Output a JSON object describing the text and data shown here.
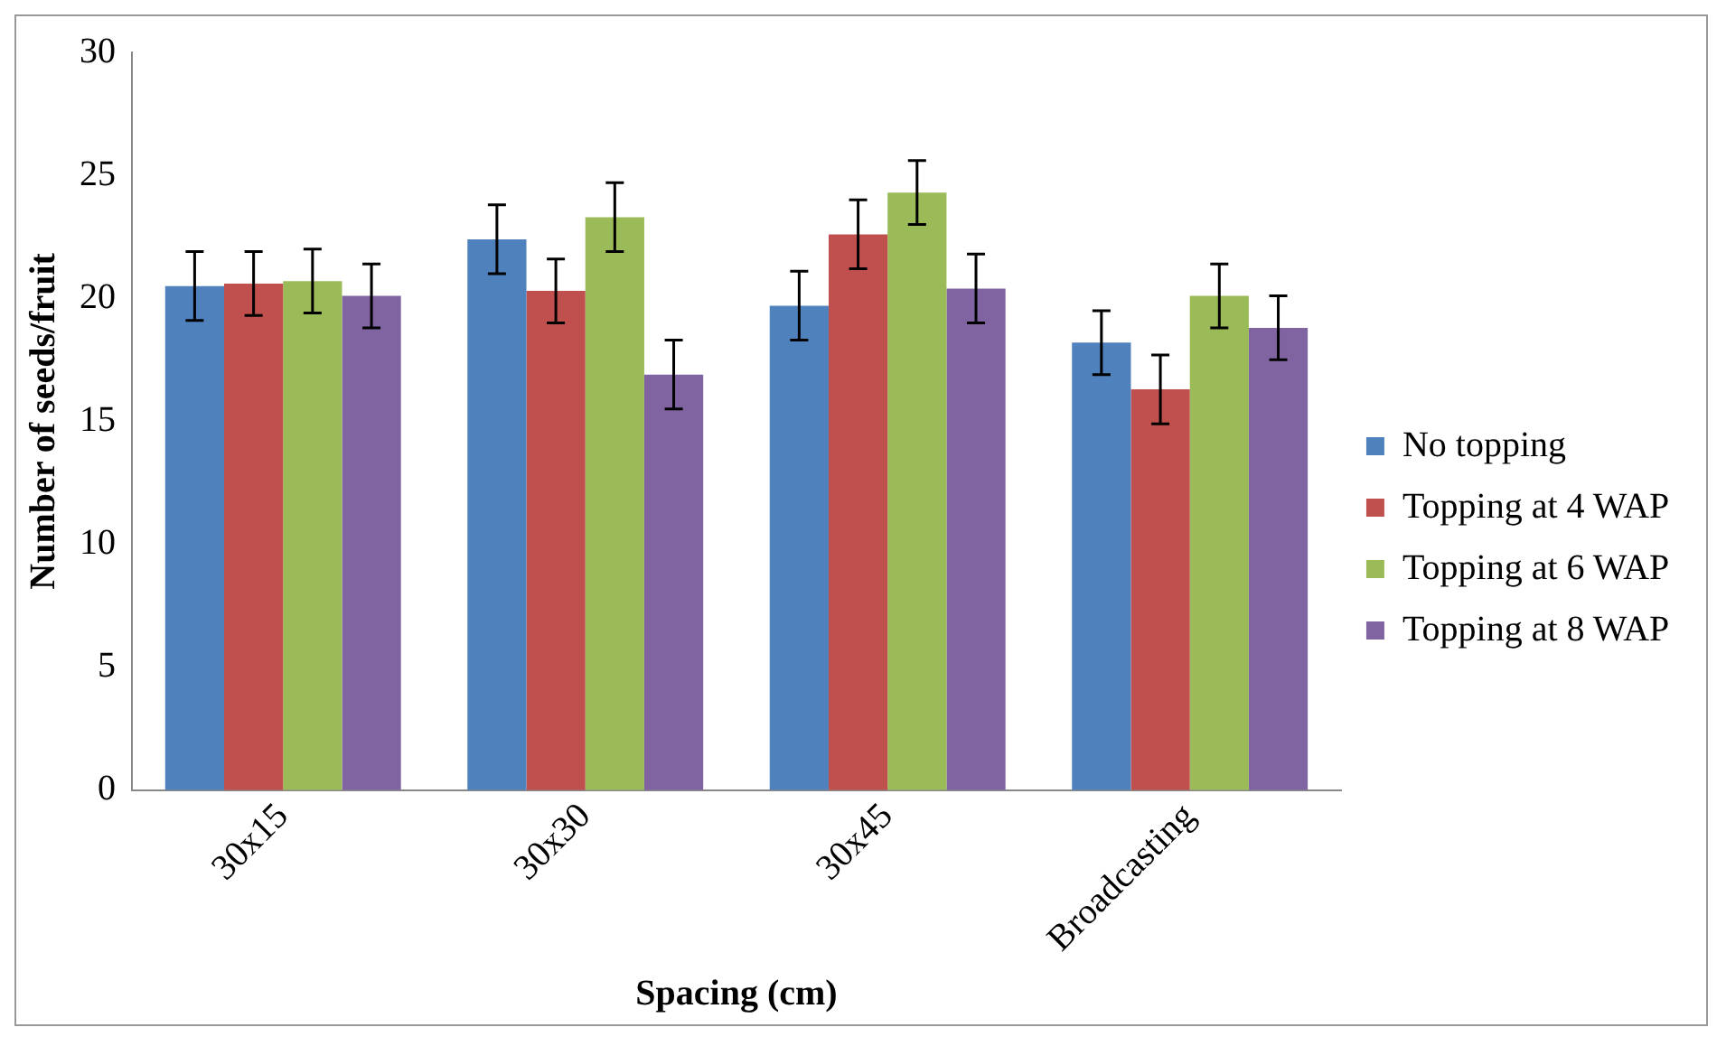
{
  "chart_data": {
    "type": "bar",
    "xlabel": "Spacing (cm)",
    "ylabel": "Number of seeds/fruit",
    "categories": [
      "30x15",
      "30x30",
      "30x45",
      "Broadcasting"
    ],
    "series": [
      {
        "name": "No topping",
        "color": "#4f81bd",
        "values": [
          20.5,
          22.4,
          19.7,
          18.2
        ],
        "errors": [
          1.4,
          1.4,
          1.4,
          1.3
        ]
      },
      {
        "name": "Topping at 4 WAP",
        "color": "#c0504d",
        "values": [
          20.6,
          20.3,
          22.6,
          16.3
        ],
        "errors": [
          1.3,
          1.3,
          1.4,
          1.4
        ]
      },
      {
        "name": "Topping at 6 WAP",
        "color": "#9bbb59",
        "values": [
          20.7,
          23.3,
          24.3,
          20.1
        ],
        "errors": [
          1.3,
          1.4,
          1.3,
          1.3
        ]
      },
      {
        "name": "Topping at 8 WAP",
        "color": "#8064a2",
        "values": [
          20.1,
          16.9,
          20.4,
          18.8
        ],
        "errors": [
          1.3,
          1.4,
          1.4,
          1.3
        ]
      }
    ],
    "ylim": [
      0,
      30
    ],
    "yticks": [
      0,
      5,
      10,
      15,
      20,
      25,
      30
    ],
    "grid": false,
    "legend": "right"
  }
}
